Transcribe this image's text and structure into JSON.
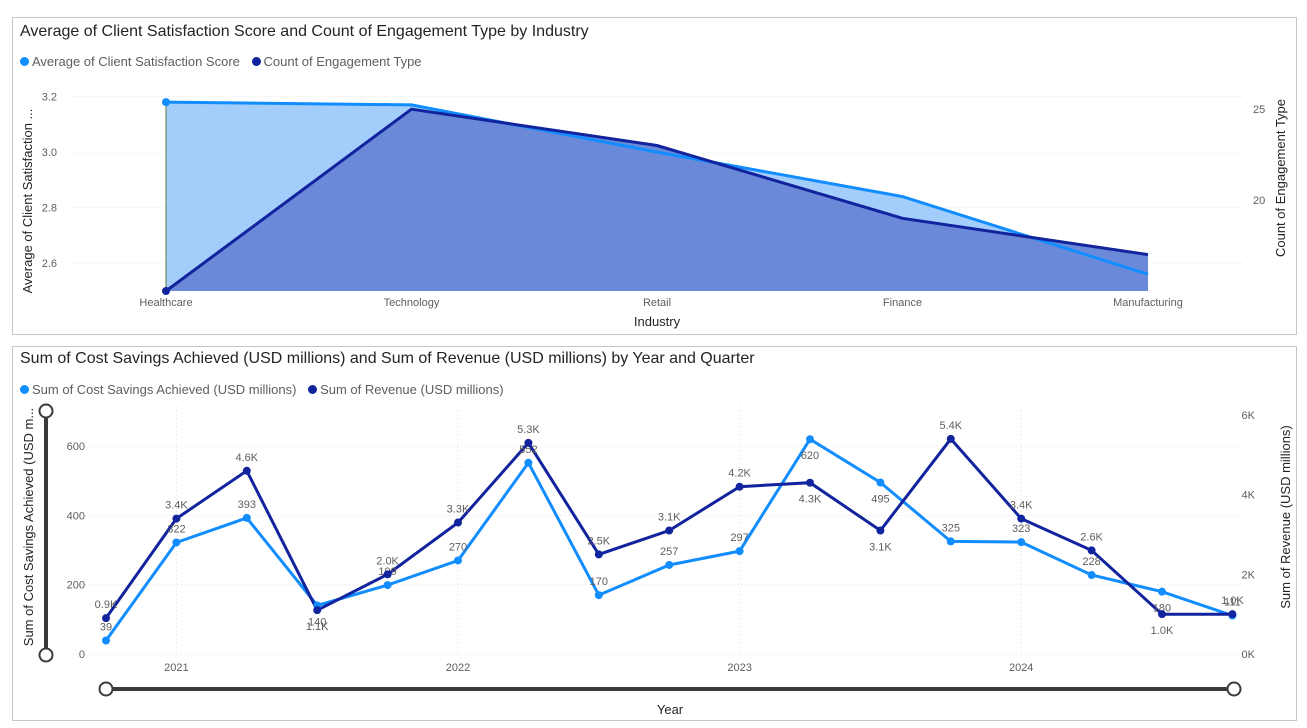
{
  "chart_data": [
    {
      "type": "area",
      "title": "Average of Client Satisfaction Score and Count of Engagement Type by Industry",
      "legend": [
        "Average of Client Satisfaction Score",
        "Count of Engagement Type"
      ],
      "legend_position": "top-left",
      "xlabel": "Industry",
      "ylabel": "Average of Client Satisfaction ...",
      "y2label": "Count of Engagement Type",
      "categories": [
        "Healthcare",
        "Technology",
        "Retail",
        "Finance",
        "Manufacturing"
      ],
      "series": [
        {
          "name": "Average of Client Satisfaction Score",
          "axis": "left",
          "values": [
            3.18,
            3.17,
            3.0,
            2.84,
            2.56
          ]
        },
        {
          "name": "Count of Engagement Type",
          "axis": "right",
          "values": [
            15,
            25,
            23,
            19,
            17
          ]
        }
      ],
      "ylim": [
        2.5,
        3.22
      ],
      "y2lim": [
        15,
        26
      ],
      "yticks": [
        "2.6",
        "2.8",
        "3.0",
        "3.2"
      ],
      "y2ticks": [
        "20",
        "25"
      ],
      "grid": true,
      "colors": {
        "score": "#118dff",
        "score_fill": "#a3cdfb",
        "count": "#12239e",
        "count_fill": "#6a89d8"
      }
    },
    {
      "type": "line",
      "title": "Sum of Cost Savings Achieved (USD millions) and Sum of Revenue (USD millions) by Year and Quarter",
      "legend": [
        "Sum of Cost Savings Achieved (USD millions)",
        "Sum of Revenue (USD millions)"
      ],
      "legend_position": "top-left",
      "xlabel": "Year",
      "ylabel": "Sum of Cost Savings Achieved (USD m...",
      "y2label": "Sum of Revenue (USD millions)",
      "x_ticks": [
        "2021",
        "2022",
        "2023",
        "2024"
      ],
      "series": [
        {
          "name": "Sum of Cost Savings Achieved (USD millions)",
          "axis": "left",
          "values": [
            39,
            322,
            393,
            140,
            199,
            270,
            552,
            170,
            257,
            297,
            620,
            495,
            325,
            323,
            228,
            180,
            111
          ],
          "labels": [
            "39",
            "322",
            "393",
            "140",
            "199",
            "270",
            "552",
            "170",
            "257",
            "297",
            "620",
            "495",
            "325",
            "323",
            "228",
            "180",
            "111"
          ]
        },
        {
          "name": "Sum of Revenue (USD millions)",
          "axis": "right",
          "values": [
            0.9,
            3.4,
            4.6,
            1.1,
            2.0,
            3.3,
            5.3,
            2.5,
            3.1,
            4.2,
            4.3,
            3.1,
            5.4,
            3.4,
            2.6,
            1.0,
            1.0
          ],
          "labels": [
            "0.9K",
            "3.4K",
            "4.6K",
            "1.1K",
            "2.0K",
            "3.3K",
            "5.3K",
            "2.5K",
            "3.1K",
            "4.2K",
            "4.3K",
            "3.1K",
            "5.4K",
            "3.4K",
            "2.6K",
            "1.0K",
            "1.0K"
          ]
        }
      ],
      "ylim": [
        0,
        690
      ],
      "y2lim": [
        0,
        6
      ],
      "yticks": [
        "0",
        "200",
        "400",
        "600"
      ],
      "y2ticks": [
        "0K",
        "2K",
        "4K",
        "6K"
      ],
      "grid": true,
      "colors": {
        "savings": "#118dff",
        "revenue": "#12239e"
      }
    }
  ]
}
